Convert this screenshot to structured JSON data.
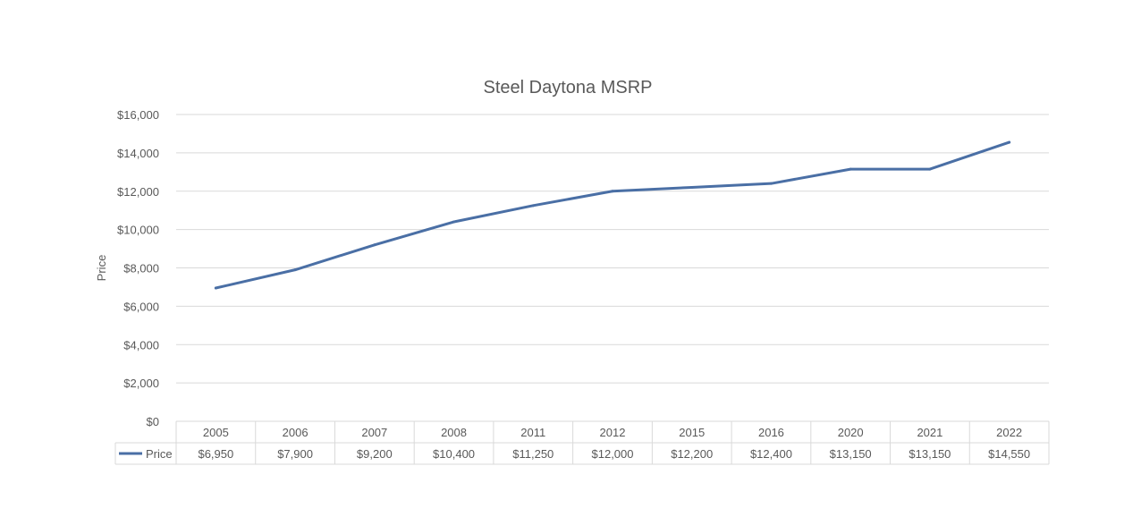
{
  "chart_data": {
    "type": "line",
    "title": "Steel Daytona MSRP",
    "xlabel": "",
    "ylabel": "Price",
    "ylim": [
      0,
      16000
    ],
    "ytick_step": 2000,
    "ytick_labels": [
      "$0",
      "$2,000",
      "$4,000",
      "$6,000",
      "$8,000",
      "$10,000",
      "$12,000",
      "$14,000",
      "$16,000"
    ],
    "grid": true,
    "legend": "data-table",
    "categories": [
      "2005",
      "2006",
      "2007",
      "2008",
      "2011",
      "2012",
      "2015",
      "2016",
      "2020",
      "2021",
      "2022"
    ],
    "series": [
      {
        "name": "Price",
        "color": "#4a6fa5",
        "values": [
          6950,
          7900,
          9200,
          10400,
          11250,
          12000,
          12200,
          12400,
          13150,
          13150,
          14550
        ],
        "value_labels": [
          "$6,950",
          "$7,900",
          "$9,200",
          "$10,400",
          "$11,250",
          "$12,000",
          "$12,200",
          "$12,400",
          "$13,150",
          "$13,150",
          "$14,550"
        ]
      }
    ]
  }
}
